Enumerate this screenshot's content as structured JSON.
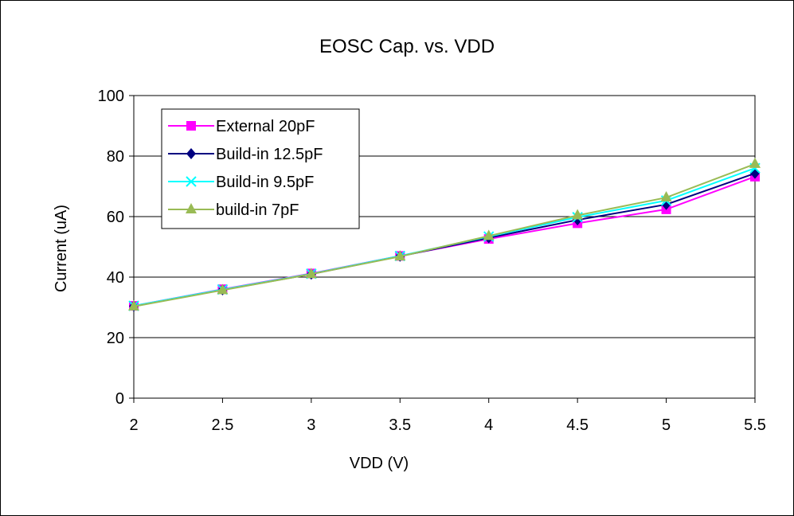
{
  "chart_data": {
    "type": "line",
    "title": "EOSC Cap. vs. VDD",
    "xlabel": "VDD (V)",
    "ylabel": "Current (uA)",
    "x": [
      2,
      2.5,
      3,
      3.5,
      4,
      4.5,
      5,
      5.5
    ],
    "x_tick_labels": [
      "2",
      "2.5",
      "3",
      "3.5",
      "4",
      "4.5",
      "5",
      "5.5"
    ],
    "ylim": [
      0,
      100
    ],
    "y_ticks": [
      0,
      20,
      40,
      60,
      80,
      100
    ],
    "y_tick_labels": [
      "0",
      "20",
      "40",
      "60",
      "80",
      "100"
    ],
    "grid": "horizontal",
    "legend_position": "top-left",
    "series": [
      {
        "name": "External 20pF",
        "color": "#ff00ff",
        "marker": "square",
        "values": [
          30.5,
          36,
          41.2,
          47,
          52.6,
          57.8,
          62.4,
          73.2
        ]
      },
      {
        "name": "Build-in 12.5pF",
        "color": "#000080",
        "marker": "diamond",
        "values": [
          30.4,
          35.8,
          41.0,
          46.9,
          53.0,
          58.9,
          64.0,
          74.3
        ]
      },
      {
        "name": "Build-in 9.5pF",
        "color": "#00ffff",
        "marker": "x",
        "values": [
          30.5,
          35.9,
          41.1,
          47.0,
          53.4,
          59.8,
          65.3,
          76.0
        ]
      },
      {
        "name": "build-in 7pF",
        "color": "#99bb55",
        "marker": "triangle",
        "values": [
          30.3,
          35.7,
          41.0,
          46.8,
          53.6,
          60.4,
          66.3,
          77.4
        ]
      }
    ]
  }
}
